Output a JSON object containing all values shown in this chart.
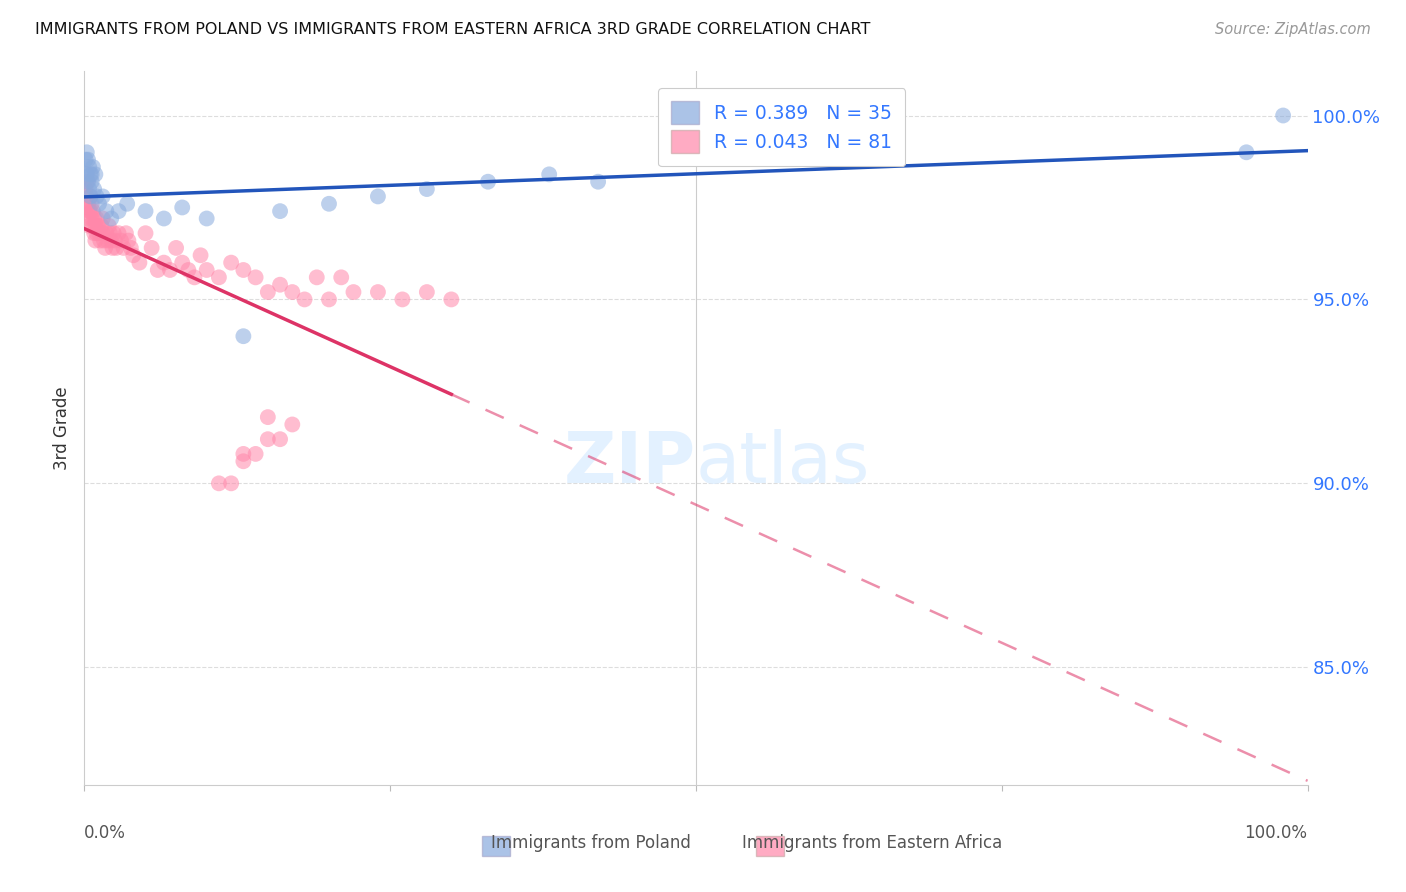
{
  "title": "IMMIGRANTS FROM POLAND VS IMMIGRANTS FROM EASTERN AFRICA 3RD GRADE CORRELATION CHART",
  "source": "Source: ZipAtlas.com",
  "ylabel": "3rd Grade",
  "r_blue": 0.389,
  "n_blue": 35,
  "r_pink": 0.043,
  "n_pink": 81,
  "color_blue": "#88AADD",
  "color_pink": "#FF88AA",
  "color_blue_line": "#2255BB",
  "color_pink_line": "#DD3366",
  "color_right_axis": "#3377FF",
  "xlim": [
    0.0,
    1.0
  ],
  "ylim": [
    0.818,
    1.012
  ],
  "yticks": [
    0.85,
    0.9,
    0.95,
    1.0
  ],
  "ytick_labels": [
    "85.0%",
    "90.0%",
    "95.0%",
    "100.0%"
  ],
  "poland_x": [
    0.001,
    0.002,
    0.002,
    0.003,
    0.003,
    0.004,
    0.004,
    0.005,
    0.005,
    0.006,
    0.006,
    0.007,
    0.008,
    0.009,
    0.01,
    0.012,
    0.015,
    0.018,
    0.022,
    0.028,
    0.035,
    0.05,
    0.065,
    0.08,
    0.1,
    0.13,
    0.16,
    0.2,
    0.24,
    0.28,
    0.33,
    0.38,
    0.42,
    0.95,
    0.98
  ],
  "poland_y": [
    0.988,
    0.99,
    0.984,
    0.988,
    0.982,
    0.986,
    0.98,
    0.984,
    0.978,
    0.982,
    0.984,
    0.986,
    0.98,
    0.984,
    0.978,
    0.976,
    0.978,
    0.974,
    0.972,
    0.974,
    0.976,
    0.974,
    0.972,
    0.975,
    0.972,
    0.94,
    0.974,
    0.976,
    0.978,
    0.98,
    0.982,
    0.984,
    0.982,
    0.99,
    1.0
  ],
  "africa_x": [
    0.001,
    0.001,
    0.002,
    0.002,
    0.003,
    0.003,
    0.004,
    0.004,
    0.005,
    0.005,
    0.006,
    0.006,
    0.007,
    0.007,
    0.008,
    0.008,
    0.009,
    0.009,
    0.01,
    0.01,
    0.011,
    0.012,
    0.013,
    0.014,
    0.015,
    0.015,
    0.016,
    0.017,
    0.018,
    0.019,
    0.02,
    0.021,
    0.022,
    0.023,
    0.024,
    0.025,
    0.026,
    0.028,
    0.03,
    0.032,
    0.034,
    0.036,
    0.038,
    0.04,
    0.045,
    0.05,
    0.055,
    0.06,
    0.065,
    0.07,
    0.075,
    0.08,
    0.085,
    0.09,
    0.095,
    0.1,
    0.11,
    0.12,
    0.13,
    0.14,
    0.15,
    0.16,
    0.17,
    0.18,
    0.19,
    0.2,
    0.21,
    0.22,
    0.24,
    0.26,
    0.28,
    0.3,
    0.13,
    0.15,
    0.17,
    0.12,
    0.14,
    0.16,
    0.11,
    0.13,
    0.15
  ],
  "africa_y": [
    0.98,
    0.975,
    0.982,
    0.978,
    0.976,
    0.972,
    0.974,
    0.97,
    0.978,
    0.974,
    0.976,
    0.972,
    0.974,
    0.97,
    0.968,
    0.972,
    0.97,
    0.966,
    0.972,
    0.968,
    0.97,
    0.968,
    0.966,
    0.97,
    0.968,
    0.972,
    0.966,
    0.964,
    0.968,
    0.966,
    0.97,
    0.968,
    0.966,
    0.964,
    0.968,
    0.966,
    0.964,
    0.968,
    0.966,
    0.964,
    0.968,
    0.966,
    0.964,
    0.962,
    0.96,
    0.968,
    0.964,
    0.958,
    0.96,
    0.958,
    0.964,
    0.96,
    0.958,
    0.956,
    0.962,
    0.958,
    0.956,
    0.96,
    0.958,
    0.956,
    0.952,
    0.954,
    0.952,
    0.95,
    0.956,
    0.95,
    0.956,
    0.952,
    0.952,
    0.95,
    0.952,
    0.95,
    0.908,
    0.912,
    0.916,
    0.9,
    0.908,
    0.912,
    0.9,
    0.906,
    0.918
  ]
}
